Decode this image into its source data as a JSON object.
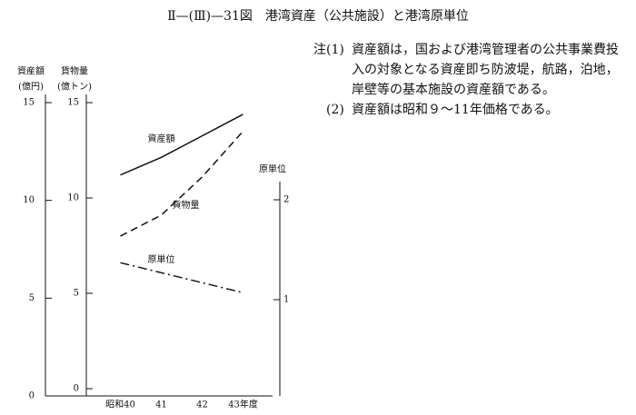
{
  "chart_data": {
    "type": "line",
    "title": "Ⅱ—(Ⅲ)—31図　港湾資産（公共施設）と港湾原単位",
    "ylabel": [
      "資産額",
      "(億円)"
    ],
    "y3label": [
      "貨物量",
      "(億トン)"
    ],
    "y2label": "原単位",
    "categories": [
      "昭和40",
      "41",
      "42",
      "43年度"
    ],
    "ylim": [
      0,
      15
    ],
    "yticks": [
      0,
      5,
      10,
      15
    ],
    "y3lim": [
      0,
      15
    ],
    "y3ticks": [
      0,
      5,
      10,
      15
    ],
    "y2lim": [
      0,
      2.2
    ],
    "y2ticks": [
      1,
      2
    ],
    "series": [
      {
        "name": "資産額",
        "color": "#111111",
        "style": "solid",
        "axis": "y",
        "values": [
          11.3,
          12.2,
          13.3,
          14.4
        ]
      },
      {
        "name": "貨物量",
        "color": "#111111",
        "style": "dashed",
        "axis": "y3",
        "values": [
          8.0,
          9.1,
          11.1,
          13.5
        ]
      },
      {
        "name": "原単位",
        "color": "#111111",
        "style": "dashdot",
        "axis": "y2",
        "values": [
          1.37,
          1.27,
          1.17,
          1.07
        ]
      }
    ]
  },
  "notes": {
    "label": "注",
    "items": [
      {
        "number": "(1)",
        "text": "資産額は，国および港湾管理者の公共事業費投入の対象となる資産即ち防波堤，航路，泊地，岸壁等の基本施設の資産額である。"
      },
      {
        "number": "(2)",
        "text": "資産額は昭和９～11年価格である。"
      }
    ]
  }
}
